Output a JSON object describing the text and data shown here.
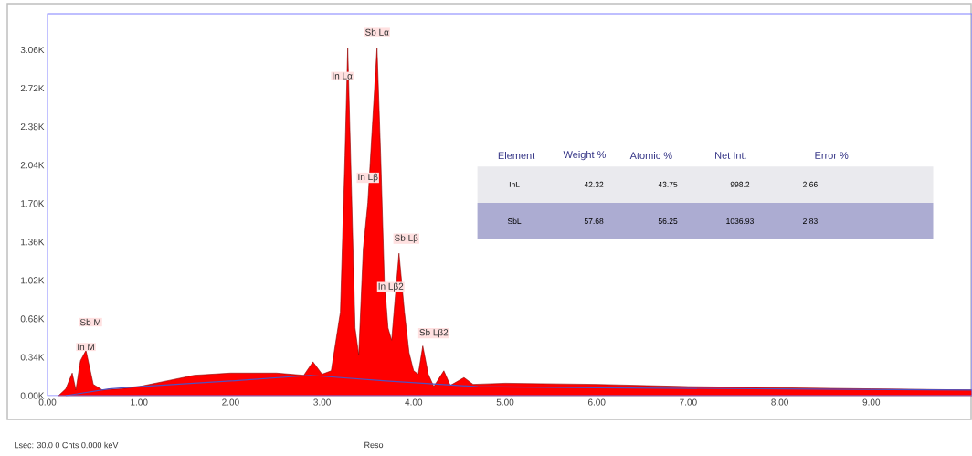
{
  "chart_data": {
    "type": "area",
    "xlim": [
      0,
      10.1
    ],
    "ylim": [
      0,
      3380
    ],
    "xticks": [
      {
        "value": 0,
        "label": "0.00"
      },
      {
        "value": 1,
        "label": "1.00"
      },
      {
        "value": 2,
        "label": "2.00"
      },
      {
        "value": 3,
        "label": "3.00"
      },
      {
        "value": 4,
        "label": "4.00"
      },
      {
        "value": 5,
        "label": "5.00"
      },
      {
        "value": 6,
        "label": "6.00"
      },
      {
        "value": 7,
        "label": "7.00"
      },
      {
        "value": 8,
        "label": "8.00"
      },
      {
        "value": 9,
        "label": "9.00"
      }
    ],
    "yticks": [
      {
        "value": 0,
        "label": "0.00K"
      },
      {
        "value": 340,
        "label": "0.34K"
      },
      {
        "value": 680,
        "label": "0.68K"
      },
      {
        "value": 1020,
        "label": "1.02K"
      },
      {
        "value": 1360,
        "label": "1.36K"
      },
      {
        "value": 1700,
        "label": "1.70K"
      },
      {
        "value": 2040,
        "label": "2.04K"
      },
      {
        "value": 2380,
        "label": "2.38K"
      },
      {
        "value": 2720,
        "label": "2.72K"
      },
      {
        "value": 3060,
        "label": "3.06K"
      }
    ],
    "series": [
      {
        "color": "#ff0000",
        "x": [
          0.12,
          0.2,
          0.27,
          0.31,
          0.36,
          0.42,
          0.5,
          0.6,
          0.8,
          1.0,
          1.3,
          1.6,
          2.0,
          2.5,
          2.8,
          2.9,
          3.0,
          3.1,
          3.2,
          3.25,
          3.28,
          3.32,
          3.36,
          3.4,
          3.45,
          3.5,
          3.55,
          3.6,
          3.64,
          3.68,
          3.72,
          3.76,
          3.8,
          3.84,
          3.9,
          3.95,
          4.0,
          4.05,
          4.1,
          4.16,
          4.22,
          4.33,
          4.4,
          4.55,
          4.65,
          5.0,
          6.0,
          7.0,
          8.0,
          9.0,
          10.1
        ],
        "values": [
          0,
          60,
          200,
          50,
          310,
          400,
          100,
          50,
          60,
          80,
          130,
          180,
          200,
          200,
          180,
          300,
          190,
          220,
          740,
          2120,
          3080,
          1850,
          600,
          360,
          1300,
          1710,
          2400,
          3080,
          2120,
          1020,
          600,
          490,
          880,
          1260,
          740,
          380,
          220,
          190,
          440,
          190,
          80,
          220,
          90,
          160,
          100,
          110,
          100,
          80,
          70,
          60,
          50
        ]
      },
      {
        "type": "line",
        "color": "#5050c0",
        "x": [
          0.2,
          0.67,
          1.0,
          2.0,
          2.87,
          3.7,
          4.7,
          6.0,
          8.0,
          10.1
        ],
        "values": [
          0,
          60,
          80,
          130,
          180,
          130,
          80,
          70,
          60,
          50
        ]
      }
    ],
    "annotations": [
      {
        "text": "Sb Lα",
        "x": 3.6,
        "y": 3080
      },
      {
        "text": "In Lα",
        "x": 3.28,
        "y": 3080
      },
      {
        "text": "In Lβ",
        "x": 3.5,
        "y": 1710
      },
      {
        "text": "Sb Lβ",
        "x": 3.84,
        "y": 1260
      },
      {
        "text": "In Lβ2",
        "x": 3.8,
        "y": 880
      },
      {
        "text": "Sb Lβ2",
        "x": 4.1,
        "y": 440
      },
      {
        "text": "Sb M",
        "x": 0.42,
        "y": 400
      },
      {
        "text": "In M",
        "x": 0.36,
        "y": 310
      },
      "Element",
      "Weight %",
      "Atomic %",
      "Net Int.",
      "Error %",
      "InL",
      "42.32",
      "43.75",
      "998.2",
      "2.66",
      "SbL",
      "57.68",
      "56.25",
      "1036.93",
      "2.83",
      "Lsec: 30.0 0 Cnts 0.000 keV",
      "Reso"
    ]
  }
}
